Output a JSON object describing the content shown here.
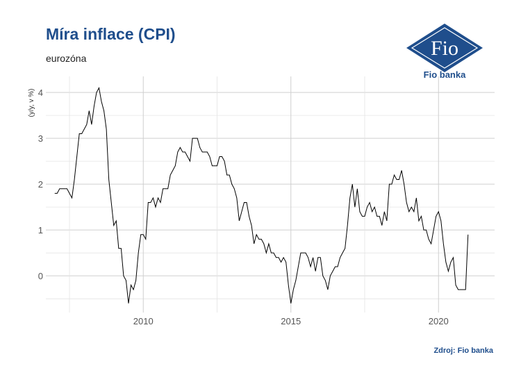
{
  "header": {
    "title": "Míra inflace (CPI)",
    "subtitle": "eurozóna"
  },
  "footer": {
    "source": "Zdroj: Fio banka"
  },
  "logo": {
    "text": "Fio",
    "caption": "Fio banka",
    "icon": "fio-banka-logo",
    "color": "#1f4e8c"
  },
  "chart_data": {
    "type": "line",
    "title": "Míra inflace (CPI)",
    "subtitle": "eurozóna",
    "ylabel": "(y/y, v %)",
    "xlabel": "",
    "xlim": [
      2006.7,
      2021.9
    ],
    "ylim": [
      -0.8,
      4.35
    ],
    "x_ticks": [
      2010,
      2015,
      2020
    ],
    "x_tick_labels": [
      "2010",
      "2015",
      "2020"
    ],
    "y_ticks": [
      0,
      1,
      2,
      3,
      4
    ],
    "y_tick_labels": [
      "0",
      "1",
      "2",
      "3",
      "4"
    ],
    "grid": true,
    "legend": "none",
    "line_color": "#000000",
    "series": [
      {
        "start": "2007-01",
        "frequency": "monthly",
        "values": [
          1.8,
          1.8,
          1.9,
          1.9,
          1.9,
          1.9,
          1.8,
          1.7,
          2.1,
          2.6,
          3.1,
          3.1,
          3.2,
          3.3,
          3.6,
          3.3,
          3.7,
          4.0,
          4.1,
          3.8,
          3.6,
          3.2,
          2.1,
          1.6,
          1.1,
          1.2,
          0.6,
          0.6,
          0.0,
          -0.1,
          -0.6,
          -0.2,
          -0.3,
          -0.1,
          0.5,
          0.9,
          0.9,
          0.8,
          1.6,
          1.6,
          1.7,
          1.5,
          1.7,
          1.6,
          1.9,
          1.9,
          1.9,
          2.2,
          2.3,
          2.4,
          2.7,
          2.8,
          2.7,
          2.7,
          2.6,
          2.5,
          3.0,
          3.0,
          3.0,
          2.8,
          2.7,
          2.7,
          2.7,
          2.6,
          2.4,
          2.4,
          2.4,
          2.6,
          2.6,
          2.5,
          2.2,
          2.2,
          2.0,
          1.9,
          1.7,
          1.2,
          1.4,
          1.6,
          1.6,
          1.3,
          1.1,
          0.7,
          0.9,
          0.8,
          0.8,
          0.7,
          0.5,
          0.7,
          0.5,
          0.5,
          0.4,
          0.4,
          0.3,
          0.4,
          0.3,
          -0.2,
          -0.6,
          -0.3,
          -0.1,
          0.2,
          0.5,
          0.5,
          0.5,
          0.4,
          0.2,
          0.4,
          0.1,
          0.4,
          0.4,
          0.0,
          -0.1,
          -0.3,
          0.0,
          0.1,
          0.2,
          0.2,
          0.4,
          0.5,
          0.6,
          1.1,
          1.7,
          2.0,
          1.5,
          1.9,
          1.4,
          1.3,
          1.3,
          1.5,
          1.6,
          1.4,
          1.5,
          1.3,
          1.3,
          1.1,
          1.4,
          1.2,
          2.0,
          2.0,
          2.2,
          2.1,
          2.1,
          2.3,
          2.0,
          1.6,
          1.4,
          1.5,
          1.4,
          1.7,
          1.2,
          1.3,
          1.0,
          1.0,
          0.8,
          0.7,
          1.0,
          1.3,
          1.4,
          1.2,
          0.7,
          0.3,
          0.1,
          0.3,
          0.4,
          -0.2,
          -0.3,
          -0.3,
          -0.3,
          -0.3,
          0.9
        ]
      }
    ]
  }
}
